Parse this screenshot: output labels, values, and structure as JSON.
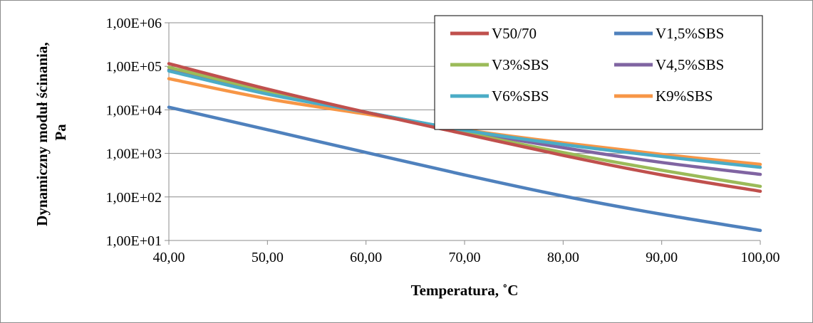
{
  "chart_data": {
    "type": "line",
    "title": "",
    "xlabel": "Temperatura, ˚C",
    "ylabel_lines": [
      "Dynamiczny moduł ścinania,",
      "Pa"
    ],
    "y_scale": "log",
    "xlim": [
      40,
      100
    ],
    "ylim": [
      10,
      1000000
    ],
    "x_ticks": [
      40,
      50,
      60,
      70,
      80,
      90,
      100
    ],
    "x_tick_labels": [
      "40,00",
      "50,00",
      "60,00",
      "70,00",
      "80,00",
      "90,00",
      "100,00"
    ],
    "y_ticks": [
      10,
      100,
      1000,
      10000,
      100000,
      1000000
    ],
    "y_tick_labels": [
      "1,00E+01",
      "1,00E+02",
      "1,00E+03",
      "1,00E+04",
      "1,00E+05",
      "1,00E+06"
    ],
    "grid": "horizontal",
    "legend_position": "top-right",
    "series": [
      {
        "name": "V50/70",
        "color": "#c0504d",
        "x": [
          40,
          50,
          60,
          70,
          80,
          90,
          100
        ],
        "y": [
          115000,
          30000,
          8800,
          2800,
          900,
          320,
          135
        ]
      },
      {
        "name": "V1,5%SBS",
        "color": "#4f81bd",
        "x": [
          40,
          50,
          60,
          70,
          80,
          90,
          100
        ],
        "y": [
          11500,
          3500,
          1050,
          320,
          105,
          40,
          17
        ]
      },
      {
        "name": "V3%SBS",
        "color": "#9bbb59",
        "x": [
          40,
          50,
          60,
          70,
          80,
          90,
          100
        ],
        "y": [
          95000,
          27000,
          8800,
          3000,
          1050,
          410,
          175
        ]
      },
      {
        "name": "V4,5%SBS",
        "color": "#8064a2",
        "x": [
          40,
          50,
          60,
          70,
          80,
          90,
          100
        ],
        "y": [
          82000,
          24000,
          8800,
          3300,
          1350,
          620,
          330
        ]
      },
      {
        "name": "V6%SBS",
        "color": "#4bacc6",
        "x": [
          40,
          50,
          60,
          70,
          80,
          90,
          100
        ],
        "y": [
          78000,
          23000,
          8800,
          3400,
          1600,
          850,
          480
        ]
      },
      {
        "name": "K9%SBS",
        "color": "#f79646",
        "x": [
          40,
          50,
          60,
          70,
          80,
          90,
          100
        ],
        "y": [
          52000,
          18000,
          8000,
          3500,
          1750,
          950,
          560
        ]
      }
    ]
  }
}
